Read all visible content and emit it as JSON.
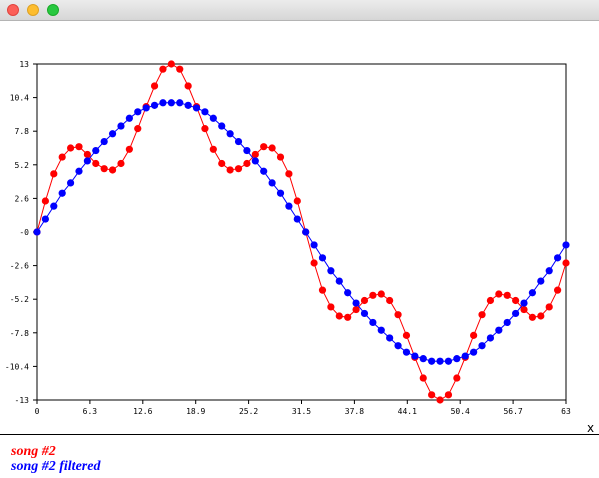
{
  "window": {
    "title": ""
  },
  "chart_data": {
    "type": "line",
    "title": "",
    "xlabel": "x",
    "ylabel": "",
    "xlim": [
      0,
      63
    ],
    "ylim": [
      -13,
      13
    ],
    "xticks": [
      "0",
      "6.3",
      "12.6",
      "18.9",
      "25.2",
      "31.5",
      "37.8",
      "44.1",
      "50.4",
      "56.7",
      "63"
    ],
    "yticks": [
      "13",
      "10.4",
      "7.8",
      "5.2",
      "2.6",
      "-0",
      "-2.6",
      "-5.2",
      "-7.8",
      "-10.4",
      "-13"
    ],
    "grid": false,
    "legend_position": "bottom-left",
    "x": [
      0,
      1,
      2,
      3,
      4,
      5,
      6,
      7,
      8,
      9,
      10,
      11,
      12,
      13,
      14,
      15,
      16,
      17,
      18,
      19,
      20,
      21,
      22,
      23,
      24,
      25,
      26,
      27,
      28,
      29,
      30,
      31,
      32,
      33,
      34,
      35,
      36,
      37,
      38,
      39,
      40,
      41,
      42,
      43,
      44,
      45,
      46,
      47,
      48,
      49,
      50,
      51,
      52,
      53,
      54,
      55,
      56,
      57,
      58,
      59,
      60,
      61,
      62,
      63
    ],
    "series": [
      {
        "name": "song #2",
        "color": "#ff0000",
        "values": [
          0,
          2.4,
          4.5,
          5.8,
          6.5,
          6.6,
          6.0,
          5.3,
          4.9,
          4.8,
          5.3,
          6.4,
          8.0,
          9.7,
          11.3,
          12.6,
          13.0,
          12.6,
          11.3,
          9.7,
          8.0,
          6.4,
          5.3,
          4.8,
          4.9,
          5.3,
          6.0,
          6.6,
          6.5,
          5.8,
          4.5,
          2.4,
          0,
          -2.4,
          -4.5,
          -5.8,
          -6.5,
          -6.6,
          -6.0,
          -5.3,
          -4.9,
          -4.8,
          -5.3,
          -6.4,
          -8.0,
          -9.7,
          -11.3,
          -12.6,
          -13.0,
          -12.6,
          -11.3,
          -9.7,
          -8.0,
          -6.4,
          -5.3,
          -4.8,
          -4.9,
          -5.3,
          -6.0,
          -6.6,
          -6.5,
          -5.8,
          -4.5,
          -2.4
        ]
      },
      {
        "name": "song #2 filtered",
        "color": "#0000ff",
        "values": [
          0,
          1.0,
          2.0,
          3.0,
          3.8,
          4.7,
          5.5,
          6.3,
          7.0,
          7.6,
          8.2,
          8.8,
          9.3,
          9.6,
          9.8,
          10.0,
          10.0,
          10.0,
          9.8,
          9.6,
          9.3,
          8.8,
          8.2,
          7.6,
          7.0,
          6.3,
          5.5,
          4.7,
          3.8,
          3.0,
          2.0,
          1.0,
          0,
          -1.0,
          -2.0,
          -3.0,
          -3.8,
          -4.7,
          -5.5,
          -6.3,
          -7.0,
          -7.6,
          -8.2,
          -8.8,
          -9.3,
          -9.6,
          -9.8,
          -10.0,
          -10.0,
          -10.0,
          -9.8,
          -9.6,
          -9.3,
          -8.8,
          -8.2,
          -7.6,
          -7.0,
          -6.3,
          -5.5,
          -4.7,
          -3.8,
          -3.0,
          -2.0,
          -1.0
        ]
      }
    ]
  }
}
